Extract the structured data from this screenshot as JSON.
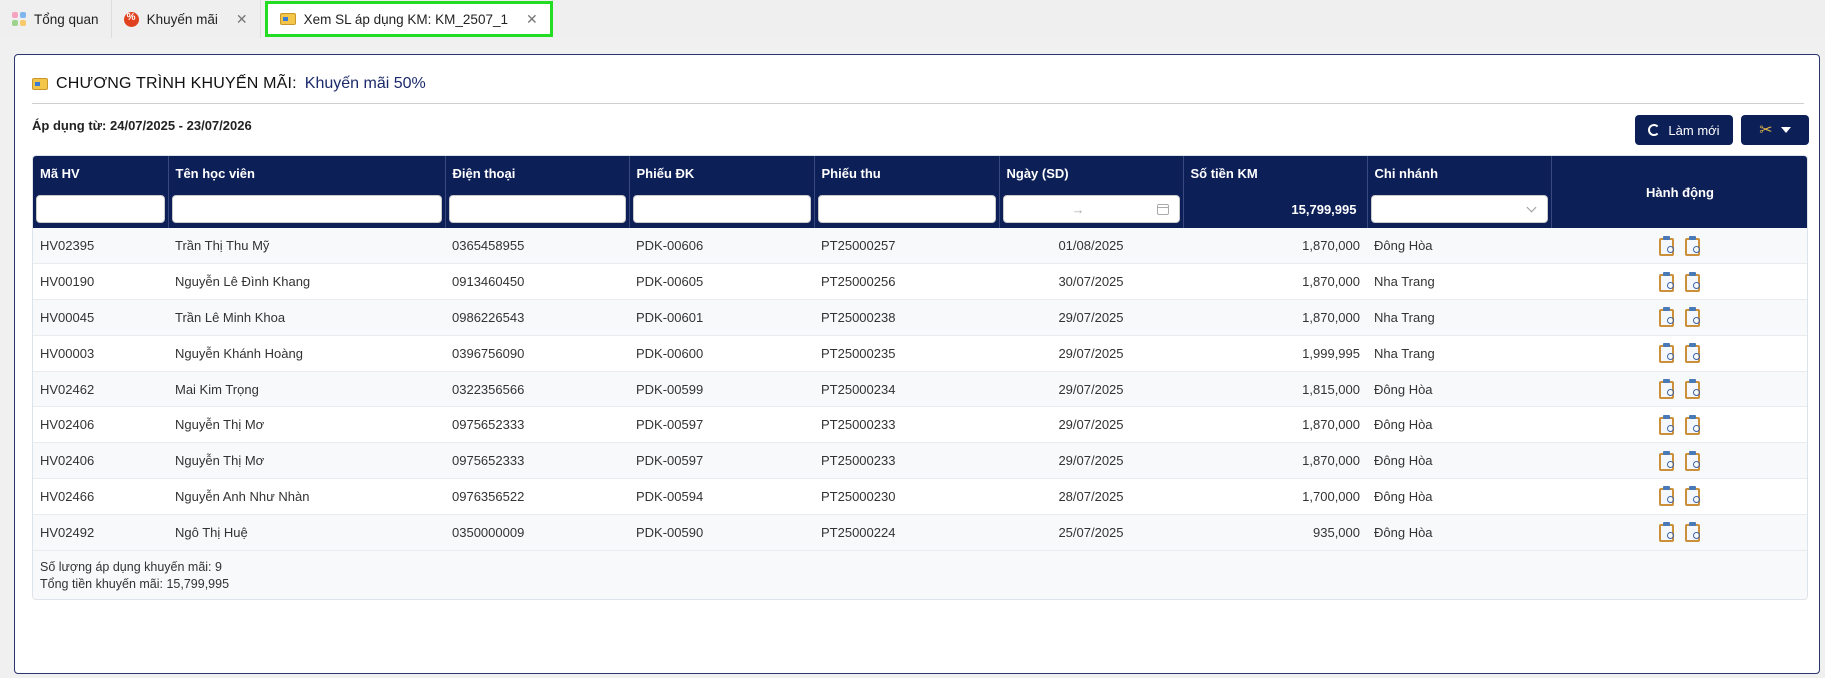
{
  "tabs": [
    {
      "label": "Tổng quan",
      "icon": "dashboard-icon",
      "closable": false,
      "active": false
    },
    {
      "label": "Khuyến mãi",
      "icon": "discount-badge-icon",
      "closable": true,
      "active": false
    },
    {
      "label": "Xem SL áp dụng KM: KM_2507_1",
      "icon": "ticket-icon",
      "closable": true,
      "active": true
    }
  ],
  "heading": {
    "prefix": "CHƯƠNG TRÌNH KHUYẾN MÃI:",
    "name": "Khuyến mãi 50%"
  },
  "apply_date": "Áp dụng từ: 24/07/2025 - 23/07/2026",
  "toolbar": {
    "refresh_label": "Làm mới"
  },
  "table": {
    "columns": [
      "Mã HV",
      "Tên học viên",
      "Điện thoại",
      "Phiếu ĐK",
      "Phiếu thu",
      "Ngày (SD)",
      "Số tiền KM",
      "Chi nhánh",
      "Hành động"
    ],
    "filter_total": "15,799,995",
    "date_range_arrow": "→",
    "rows": [
      {
        "ma_hv": "HV02395",
        "ten": "Trần Thị Thu Mỹ",
        "dien_thoai": "0365458955",
        "phieu_dk": "PDK-00606",
        "phieu_thu": "PT25000257",
        "ngay": "01/08/2025",
        "so_tien": "1,870,000",
        "chi_nhanh": "Đông Hòa"
      },
      {
        "ma_hv": "HV00190",
        "ten": "Nguyễn Lê Đình Khang",
        "dien_thoai": "0913460450",
        "phieu_dk": "PDK-00605",
        "phieu_thu": "PT25000256",
        "ngay": "30/07/2025",
        "so_tien": "1,870,000",
        "chi_nhanh": "Nha Trang"
      },
      {
        "ma_hv": "HV00045",
        "ten": "Trần Lê Minh Khoa",
        "dien_thoai": "0986226543",
        "phieu_dk": "PDK-00601",
        "phieu_thu": "PT25000238",
        "ngay": "29/07/2025",
        "so_tien": "1,870,000",
        "chi_nhanh": "Nha Trang"
      },
      {
        "ma_hv": "HV00003",
        "ten": "Nguyễn Khánh Hoàng",
        "dien_thoai": "0396756090",
        "phieu_dk": "PDK-00600",
        "phieu_thu": "PT25000235",
        "ngay": "29/07/2025",
        "so_tien": "1,999,995",
        "chi_nhanh": "Nha Trang"
      },
      {
        "ma_hv": "HV02462",
        "ten": "Mai Kim Trọng",
        "dien_thoai": "0322356566",
        "phieu_dk": "PDK-00599",
        "phieu_thu": "PT25000234",
        "ngay": "29/07/2025",
        "so_tien": "1,815,000",
        "chi_nhanh": "Đông Hòa"
      },
      {
        "ma_hv": "HV02406",
        "ten": "Nguyễn Thị Mơ",
        "dien_thoai": "0975652333",
        "phieu_dk": "PDK-00597",
        "phieu_thu": "PT25000233",
        "ngay": "29/07/2025",
        "so_tien": "1,870,000",
        "chi_nhanh": "Đông Hòa"
      },
      {
        "ma_hv": "HV02406",
        "ten": "Nguyễn Thị Mơ",
        "dien_thoai": "0975652333",
        "phieu_dk": "PDK-00597",
        "phieu_thu": "PT25000233",
        "ngay": "29/07/2025",
        "so_tien": "1,870,000",
        "chi_nhanh": "Đông Hòa"
      },
      {
        "ma_hv": "HV02466",
        "ten": "Nguyễn Anh Như Nhàn",
        "dien_thoai": "0976356522",
        "phieu_dk": "PDK-00594",
        "phieu_thu": "PT25000230",
        "ngay": "28/07/2025",
        "so_tien": "1,700,000",
        "chi_nhanh": "Đông Hòa"
      },
      {
        "ma_hv": "HV02492",
        "ten": "Ngô Thị Huệ",
        "dien_thoai": "0350000009",
        "phieu_dk": "PDK-00590",
        "phieu_thu": "PT25000224",
        "ngay": "25/07/2025",
        "so_tien": "935,000",
        "chi_nhanh": "Đông Hòa"
      }
    ]
  },
  "footer": {
    "count_line": "Số lượng áp dụng khuyến mãi: 9",
    "total_line": "Tổng tiền khuyến mãi: 15,799,995"
  },
  "colors": {
    "header_bg": "#0c1f57",
    "active_tab_border": "#22dd22"
  }
}
